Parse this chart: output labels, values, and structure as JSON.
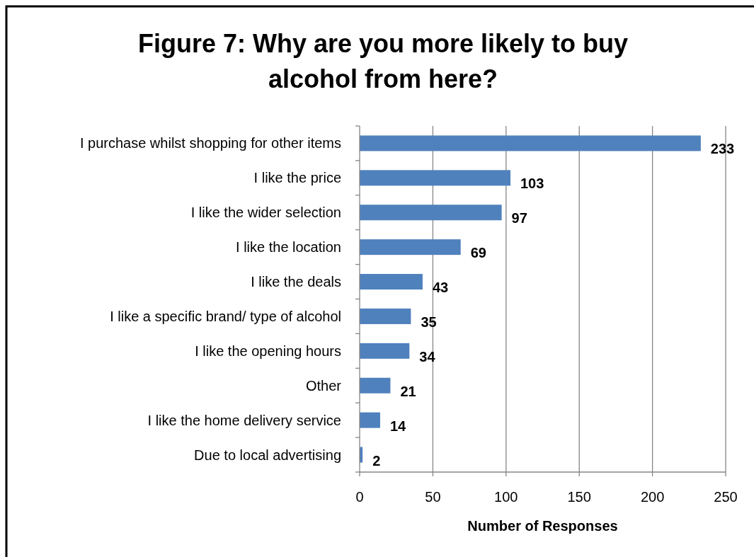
{
  "chart_data": {
    "type": "bar",
    "orientation": "horizontal",
    "title": "Figure 7: Why are you more likely to buy alcohol from here?",
    "xlabel": "Number of Responses",
    "categories": [
      "I purchase whilst shopping for other items",
      "I like the price",
      "I like the wider selection",
      "I like the location",
      "I like the deals",
      "I like a specific brand/ type of alcohol",
      "I like the opening hours",
      "Other",
      "I like the home delivery service",
      "Due to local advertising"
    ],
    "values": [
      233,
      103,
      97,
      69,
      43,
      35,
      34,
      21,
      14,
      2
    ],
    "color": "#4f81bd",
    "data_labels": true,
    "grid": "x",
    "xlim": [
      0,
      250
    ],
    "xticks": [
      0,
      50,
      100,
      150,
      200,
      250
    ]
  }
}
